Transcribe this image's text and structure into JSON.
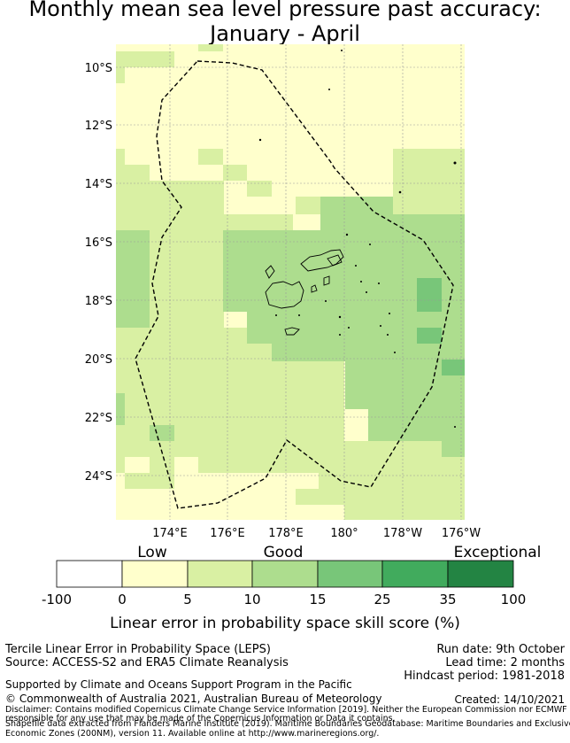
{
  "title_line1": "Monthly mean sea level pressure past accuracy:",
  "title_line2": "January - April",
  "map": {
    "lat_labels": [
      "10°S",
      "12°S",
      "14°S",
      "16°S",
      "18°S",
      "20°S",
      "22°S",
      "24°S"
    ],
    "lon_labels": [
      "174°E",
      "176°E",
      "178°E",
      "180°",
      "178°W",
      "176°W"
    ]
  },
  "colorbar": {
    "category_labels": [
      "Low",
      "Good",
      "Exceptional"
    ],
    "ticks": [
      "-100",
      "0",
      "5",
      "10",
      "15",
      "25",
      "35",
      "100"
    ],
    "colors": [
      "#ffffff",
      "#ffffcc",
      "#d9f0a3",
      "#addd8e",
      "#78c679",
      "#41ab5d",
      "#238443"
    ],
    "label": "Linear error in probability space skill score (%)"
  },
  "footer": {
    "left_line1": "Tercile Linear Error in Probability Space (LEPS)",
    "left_line2": "Source: ACCESS-S2 and ERA5 Climate Reanalysis",
    "run_date": "Run date: 9th October",
    "lead_time": "Lead time: 2 months",
    "hindcast": "Hindcast period: 1981-2018",
    "supported": "Supported by Climate and Oceans Support Program in the Pacific",
    "copyright": "© Commonwealth of Australia 2021, Australian Bureau of Meteorology",
    "created": "Created: 14/10/2021",
    "disclaimer1": "Disclaimer: Contains modified Copernicus Climate Change Service Information [2019]. Neither the European Commission nor ECMWF is",
    "disclaimer2": "responsible for any use that may be made of the Copernicus Information or Data it contains.",
    "shapefile1": "Shapefile data extracted from Flanders Marine Institute (2019). Maritime Boundaries Geodatabase: Maritime Boundaries and Exclusive",
    "shapefile2": "Economic Zones (200NM), version 11. Available online at http://www.marineregions.org/."
  }
}
